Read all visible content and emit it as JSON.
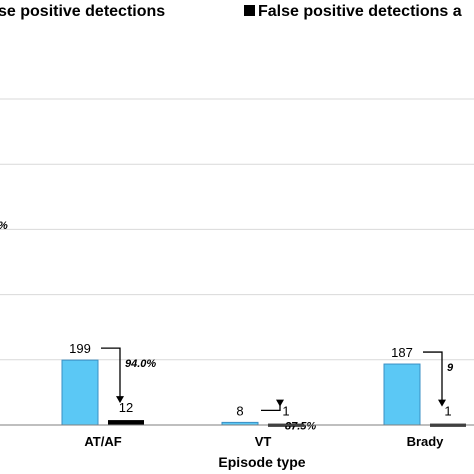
{
  "colors": {
    "true_fill": "#5bc8f5",
    "true_stroke": "#3a8fc4",
    "false_fill": "#000000",
    "grid": "#d9d9d9",
    "axis": "#7f7f7f"
  },
  "legend": {
    "true_label_partial": "se positive detections",
    "false_label_partial": "False positive detections a"
  },
  "partial_left_label": "%",
  "chart_data": {
    "type": "bar",
    "xlabel": "Episode type",
    "ylabel": "",
    "categories": [
      "AT/AF",
      "VT",
      "Brady"
    ],
    "series": [
      {
        "name": "True positive detections (partially visible)",
        "values": [
          199,
          8,
          187
        ]
      },
      {
        "name": "False positive detections (partially visible)",
        "values": [
          12,
          1,
          1
        ]
      }
    ],
    "reduction_labels": [
      "94.0%",
      "87.5%",
      "9"
    ],
    "ylim": [
      0,
      1000
    ],
    "gridlines": [
      200,
      400,
      600,
      800,
      1000
    ],
    "grid": true,
    "legend_position": "top"
  }
}
